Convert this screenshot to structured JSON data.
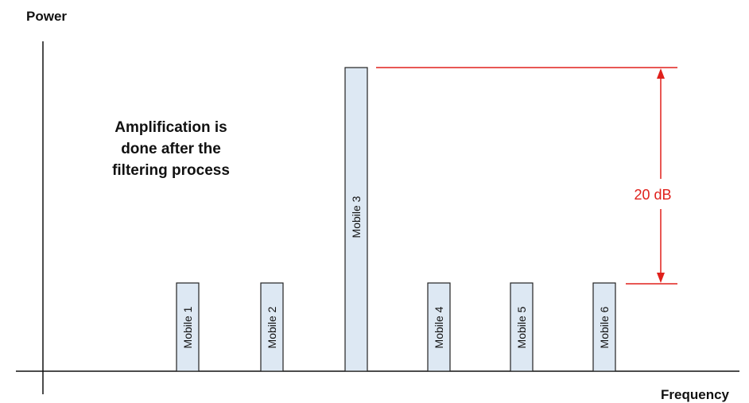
{
  "axes": {
    "y_label": "Power",
    "x_label": "Frequency"
  },
  "note": {
    "lines": [
      "Amplification is",
      "done after the",
      "filtering process"
    ]
  },
  "bars": [
    {
      "label": "Mobile 1",
      "level": "low"
    },
    {
      "label": "Mobile 2",
      "level": "low"
    },
    {
      "label": "Mobile 3",
      "level": "high"
    },
    {
      "label": "Mobile 4",
      "level": "low"
    },
    {
      "label": "Mobile 5",
      "level": "low"
    },
    {
      "label": "Mobile 6",
      "level": "low"
    }
  ],
  "difference": {
    "label": "20 dB"
  },
  "colors": {
    "bar_fill": "#dde8f3",
    "bar_stroke": "#222222",
    "axis": "#111111",
    "marker": "#e0201b"
  }
}
